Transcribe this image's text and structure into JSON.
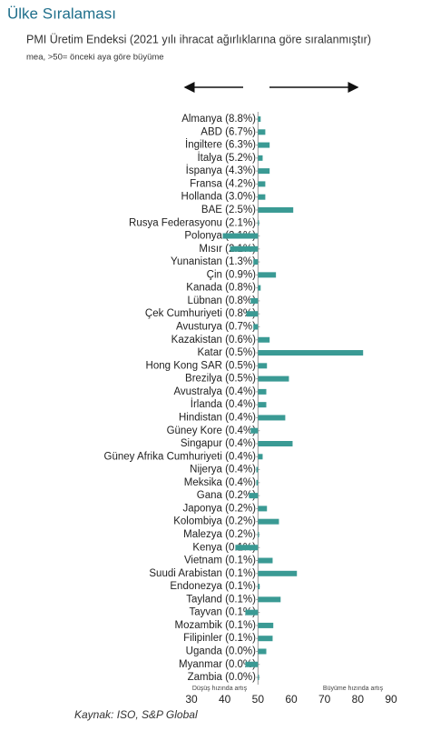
{
  "chart_data": {
    "type": "bar",
    "orientation": "horizontal",
    "title": "Ülke Sıralaması",
    "subtitle": "PMI Üretim Endeksi (2021 yılı ihracat ağırlıklarına göre sıralanmıştır)",
    "note": "mea, >50= önceki aya göre büyüme",
    "source": "Kaynak: ISO, S&P Global",
    "left_label": "Düşüş hızında artış",
    "right_label": "Büyüme hızında artış",
    "categories": [
      "Almanya (8.8%)",
      "ABD (6.7%)",
      "İngiltere (6.3%)",
      "İtalya (5.2%)",
      "İspanya (4.3%)",
      "Fransa (4.2%)",
      "Hollanda (3.0%)",
      "BAE (2.5%)",
      "Rusya Federasyonu (2.1%)",
      "Polonya (2.1%)",
      "Mısır (2.1%)",
      "Yunanistan (1.3%)",
      "Çin (0.9%)",
      "Kanada (0.8%)",
      "Lübnan (0.8%)",
      "Çek Cumhuriyeti (0.8%)",
      "Avusturya (0.7%)",
      "Kazakistan (0.6%)",
      "Katar (0.5%)",
      "Hong Kong SAR (0.5%)",
      "Brezilya (0.5%)",
      "Avustralya (0.4%)",
      "İrlanda (0.4%)",
      "Hindistan (0.4%)",
      "Güney Kore (0.4%)",
      "Singapur (0.4%)",
      "Güney Afrika Cumhuriyeti (0.4%)",
      "Nijerya (0.4%)",
      "Meksika (0.4%)",
      "Gana (0.2%)",
      "Japonya (0.2%)",
      "Kolombiya (0.2%)",
      "Malezya (0.2%)",
      "Kenya (0.1%)",
      "Vietnam (0.1%)",
      "Suudi Arabistan (0.1%)",
      "Endonezya (0.1%)",
      "Tayland (0.1%)",
      "Tayvan (0.1%)",
      "Mozambik (0.1%)",
      "Filipinler (0.1%)",
      "Uganda (0.0%)",
      "Myanmar (0.0%)",
      "Zambia (0.0%)"
    ],
    "values": [
      50.8,
      52.2,
      53.5,
      51.4,
      53.5,
      52.2,
      52.2,
      60.6,
      50.3,
      39.4,
      41.6,
      48.6,
      55.4,
      50.8,
      47.8,
      46.5,
      48.6,
      53.5,
      81.6,
      52.7,
      59.3,
      52.5,
      52.5,
      58.2,
      47.8,
      60.4,
      51.4,
      49.5,
      49.5,
      47.3,
      52.7,
      56.3,
      50.3,
      43.2,
      54.4,
      61.7,
      50.5,
      56.8,
      46.2,
      54.6,
      54.4,
      52.5,
      46.2,
      50.3
    ],
    "color": "#3a9a94",
    "baseline": 50,
    "xlim": [
      30,
      90
    ],
    "xticks": [
      30,
      40,
      50,
      60,
      70,
      80,
      90
    ]
  }
}
